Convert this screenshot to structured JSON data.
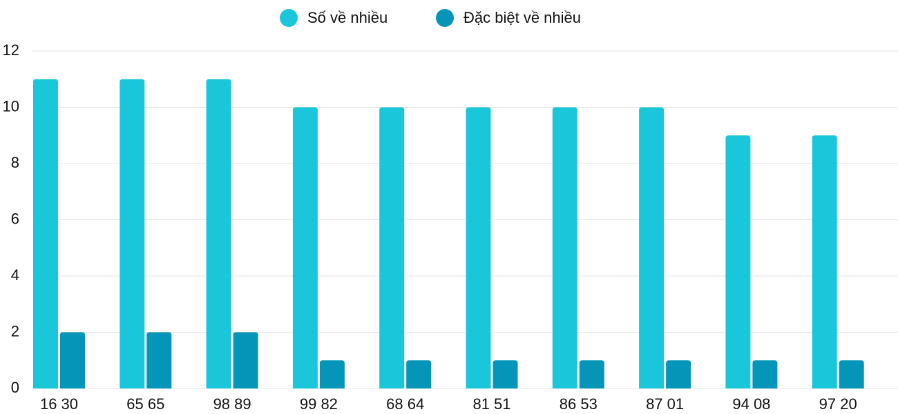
{
  "chart_data": {
    "type": "bar",
    "categories": [
      "16 30",
      "65 65",
      "98 89",
      "99 82",
      "68 64",
      "81 51",
      "86 53",
      "87 01",
      "94 08",
      "97 20"
    ],
    "series": [
      {
        "name": "Số về nhiều",
        "color": "#1ac6da",
        "values": [
          11,
          11,
          11,
          10,
          10,
          10,
          10,
          10,
          9,
          9
        ]
      },
      {
        "name": "Đặc biệt về nhiều",
        "color": "#0595b8",
        "values": [
          2,
          2,
          2,
          1,
          1,
          1,
          1,
          1,
          1,
          1
        ]
      }
    ],
    "ylim": [
      0,
      12
    ],
    "yticks": [
      0,
      2,
      4,
      6,
      8,
      10,
      12
    ],
    "grid": true,
    "legend": "top"
  }
}
